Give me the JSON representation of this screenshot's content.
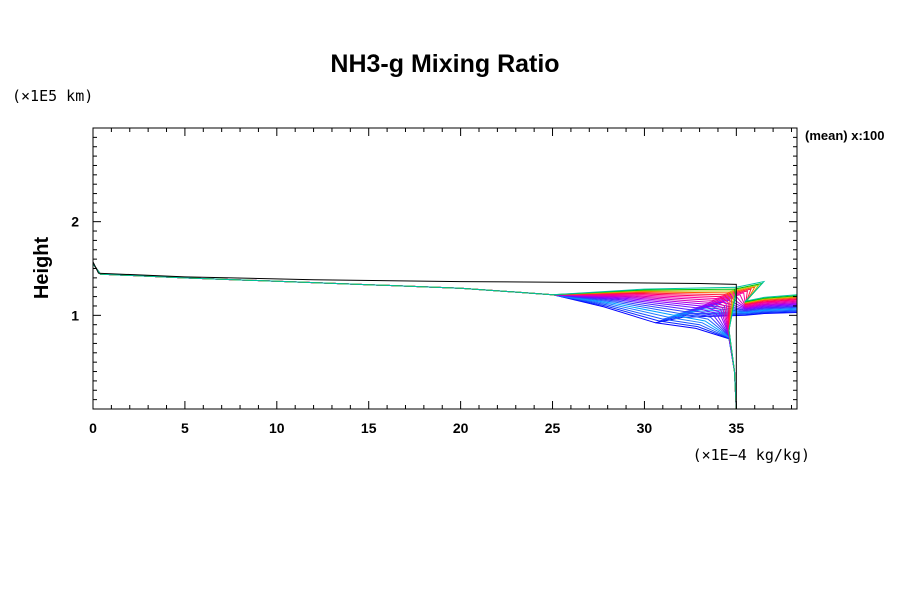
{
  "chart_data": {
    "type": "line",
    "title": "NH3-g Mixing Ratio",
    "xlabel": "(×1E−4 kg/kg)",
    "ylabel": "Height",
    "y_unit_label": "(×1E5 km)",
    "annotation": "(mean) x:100",
    "xlim": [
      0,
      38.3
    ],
    "ylim": [
      0,
      3
    ],
    "xticks": [
      0,
      5,
      10,
      15,
      20,
      25,
      30,
      35
    ],
    "xtick_labels": [
      "0",
      "5",
      "10",
      "15",
      "20",
      "25",
      "30",
      "35"
    ],
    "yticks": [
      1,
      2
    ],
    "ytick_labels": [
      "1",
      "2"
    ],
    "reference_profile": {
      "name": "initial",
      "color": "#000000",
      "points": [
        [
          0.0,
          3.0
        ],
        [
          0.0,
          1.57
        ],
        [
          0.3,
          1.45
        ],
        [
          5.0,
          1.41
        ],
        [
          12.0,
          1.38
        ],
        [
          20.0,
          1.36
        ],
        [
          28.0,
          1.35
        ],
        [
          33.0,
          1.34
        ],
        [
          35.0,
          1.33
        ],
        [
          35.0,
          0.0
        ]
      ]
    },
    "series_summary": {
      "count": 20,
      "upper_branch": [
        [
          0.0,
          3.0
        ],
        [
          0.0,
          1.55
        ],
        [
          0.4,
          1.44
        ],
        [
          5.0,
          1.4
        ],
        [
          12.0,
          1.35
        ],
        [
          20.0,
          1.29
        ],
        [
          25.0,
          1.22
        ]
      ],
      "tail_start_x": [
        30.6,
        30.8,
        31.0,
        31.3,
        31.6,
        31.9,
        32.2,
        32.5,
        32.8,
        33.1,
        33.3,
        33.5,
        33.7,
        33.9,
        34.1,
        34.3,
        34.5,
        34.7,
        34.9,
        35.0
      ],
      "tail_height_at_start": [
        0.92,
        0.94,
        0.96,
        0.98,
        1.0,
        1.02,
        1.04,
        1.06,
        1.08,
        1.1,
        1.12,
        1.14,
        1.16,
        1.18,
        1.2,
        1.22,
        1.24,
        1.26,
        1.28,
        1.3
      ],
      "colors": [
        "#0000ff",
        "#0a28ff",
        "#1450ff",
        "#1e78ff",
        "#00a0ff",
        "#2060ff",
        "#3040ff",
        "#5020ff",
        "#7010ff",
        "#9000ff",
        "#b000e0",
        "#d000c0",
        "#e000a0",
        "#ff00a0",
        "#ff0060",
        "#ff2040",
        "#ff6000",
        "#c0c000",
        "#00c000",
        "#00c0a0"
      ]
    }
  }
}
